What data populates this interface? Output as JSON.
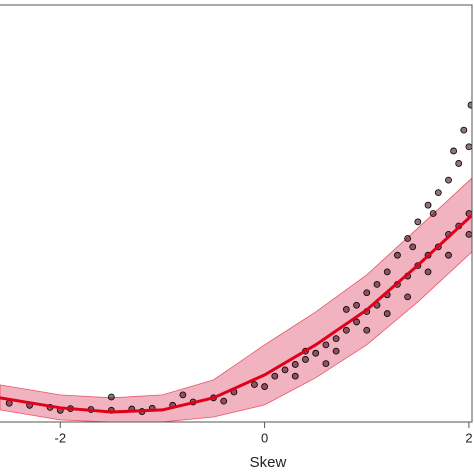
{
  "chart_data": {
    "type": "scatter",
    "x_label": "Skew",
    "xlim": [
      -2.59,
      2.03
    ],
    "ylim": [
      0,
      100
    ],
    "xticks": [
      -2,
      0,
      2
    ],
    "point_color": "#3a0010",
    "x": [
      -2.5,
      -2.3,
      -2.1,
      -1.9,
      -1.7,
      -1.5,
      -1.3,
      -1.1,
      -0.9,
      -0.7,
      -0.5,
      -0.3,
      -0.1,
      0.1,
      0.2,
      0.3,
      0.4,
      0.5,
      0.6,
      0.7,
      0.8,
      0.9,
      1.0,
      1.1,
      1.2,
      1.3,
      1.4,
      1.5,
      1.6,
      1.7,
      1.8,
      1.9,
      2.0,
      0.8,
      1.0,
      1.2,
      1.3,
      1.4,
      1.5,
      1.6,
      1.7,
      1.8,
      1.9,
      2.0,
      1.95,
      2.02,
      1.85,
      1.65,
      1.45,
      1.1,
      0.9,
      -1.5,
      -0.8,
      0.4,
      0.6,
      1.0,
      1.4,
      1.8,
      -2.0,
      -1.2,
      -0.4,
      0.0,
      0.3,
      0.7,
      1.2,
      1.6,
      2.0
    ],
    "values": [
      4.5,
      4,
      3.5,
      3.2,
      3,
      2.8,
      3.1,
      3.3,
      4,
      4.8,
      5.8,
      7.2,
      9,
      11,
      12.5,
      13.8,
      15,
      16.5,
      18.5,
      20,
      22,
      24,
      26.5,
      28,
      30.5,
      33,
      35,
      37.5,
      40,
      42,
      45,
      47,
      50,
      27,
      31,
      36,
      40,
      44,
      48,
      52,
      55,
      58,
      62,
      66,
      70,
      76,
      65,
      50,
      42,
      33,
      28,
      6,
      6.5,
      17,
      14,
      22,
      30,
      40,
      2.8,
      2.5,
      5,
      8.5,
      11,
      17,
      26,
      36,
      45
    ],
    "fit": {
      "color": "#e0001a",
      "band_color": "#f2b3c0",
      "x": [
        -2.59,
        -2,
        -1.5,
        -1,
        -0.5,
        0,
        0.5,
        1,
        1.5,
        2.03
      ],
      "values": [
        5.8,
        3.4,
        2.4,
        2.9,
        5.8,
        11.3,
        18.5,
        26.9,
        37.6,
        49.6
      ],
      "band_upper": [
        8.9,
        6.5,
        5.8,
        6.5,
        10.1,
        18.5,
        26.4,
        35.3,
        46.5,
        58.5
      ],
      "band_lower": [
        2.9,
        0.5,
        0,
        0,
        1.2,
        4.1,
        10.6,
        18.5,
        28.8,
        40.8
      ]
    }
  }
}
